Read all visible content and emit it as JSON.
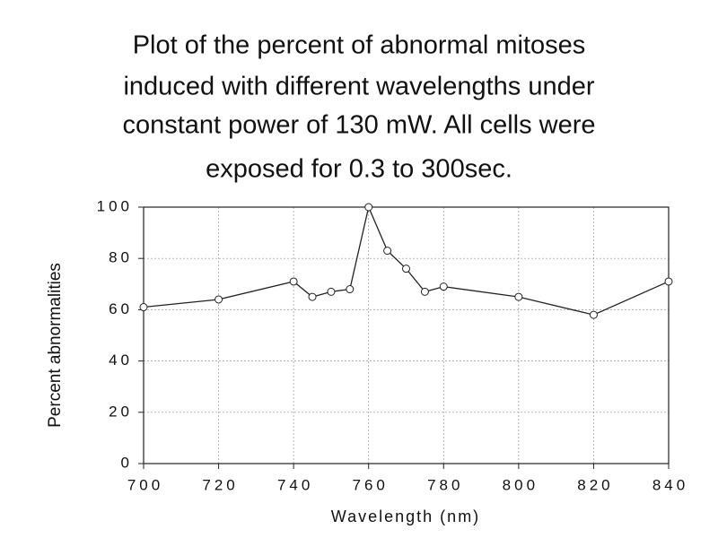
{
  "chart_data": {
    "type": "line",
    "title": [
      "Plot of the percent of abnormal mitoses",
      "induced with different wavelengths under",
      "constant power of 130 mW. All cells were",
      "exposed for 0.3 to 300sec."
    ],
    "x_label": "Wavelength  (nm)",
    "y_label": "Percent  abnormalities",
    "x": [
      700,
      720,
      740,
      745,
      750,
      755,
      760,
      765,
      770,
      775,
      780,
      800,
      820,
      840
    ],
    "series": [
      {
        "name": "Percent abnormalities",
        "color": "#222222",
        "values": [
          61,
          64,
          71,
          65,
          67,
          68,
          100,
          83,
          76,
          67,
          69,
          65,
          58,
          71
        ]
      }
    ],
    "xlim": [
      700,
      840
    ],
    "xticks": [
      700,
      720,
      740,
      760,
      780,
      800,
      820,
      840
    ],
    "ylim": [
      0,
      100
    ],
    "yticks": [
      0,
      20,
      40,
      60,
      80,
      100
    ],
    "grid": true
  }
}
